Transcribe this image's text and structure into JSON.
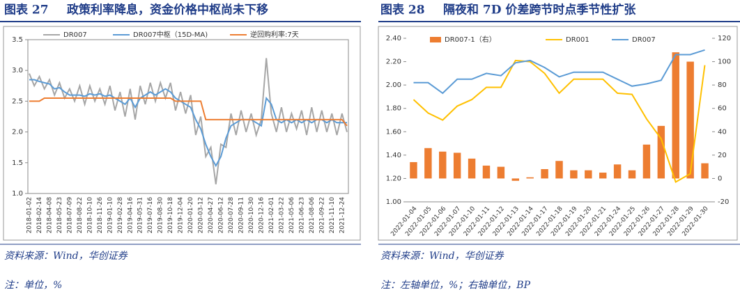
{
  "chart_data": [
    {
      "type": "line",
      "label": "图表 27",
      "title": "政策利率降息，资金价格中枢尚未下移",
      "source": "资料来源：Wind，华创证券",
      "note": "注：单位，%",
      "categories": [
        "2018-01-02",
        null,
        "2018-02-14",
        null,
        "2018-04-08",
        null,
        "2018-05-23",
        null,
        "2018-07-09",
        null,
        "2018-08-22",
        null,
        "2018-10-10",
        null,
        "2018-11-26",
        null,
        "2019-01-10",
        null,
        "2019-02-28",
        null,
        "2019-04-16",
        null,
        "2019-05-31",
        null,
        "2019-07-16",
        null,
        "2019-08-30",
        null,
        "2019-10-18",
        null,
        "2019-12-04",
        null,
        "2020-01-20",
        null,
        "2020-03-12",
        null,
        "2020-04-27",
        null,
        "2020-06-12",
        null,
        "2020-07-28",
        null,
        "2020-09-11",
        null,
        "2020-10-30",
        null,
        "2020-12-16",
        null,
        "2021-02-01",
        null,
        "2021-03-22",
        null,
        "2021-05-06",
        null,
        "2021-06-23",
        null,
        "2021-08-06",
        null,
        "2021-09-22",
        null,
        "2021-11-10",
        null,
        "2021-12-24",
        null
      ],
      "ylim": [
        1,
        3.5
      ],
      "yticks": [
        {
          "value": 1,
          "label": "1.0"
        },
        1.5,
        {
          "value": 2,
          "label": "2.0"
        },
        2.5,
        {
          "value": 3,
          "label": "3.0"
        },
        3.5
      ],
      "series": [
        {
          "name": "DR007",
          "color": "#a6a6a6",
          "values": [
            2.95,
            2.75,
            2.9,
            2.7,
            2.85,
            2.6,
            2.8,
            2.55,
            2.7,
            2.5,
            2.75,
            2.45,
            2.75,
            2.5,
            2.7,
            2.45,
            2.75,
            2.35,
            2.65,
            2.25,
            2.7,
            2.2,
            2.75,
            2.45,
            2.8,
            2.5,
            2.8,
            2.55,
            2.8,
            2.35,
            2.65,
            2.3,
            2.6,
            1.95,
            2.25,
            1.6,
            1.75,
            1.15,
            1.8,
            1.75,
            2.3,
            1.95,
            2.35,
            2.0,
            2.3,
            1.95,
            2.2,
            3.2,
            2.3,
            2.0,
            2.4,
            2.0,
            2.3,
            2.05,
            2.35,
            1.95,
            2.4,
            2.0,
            2.35,
            2.0,
            2.3,
            1.95,
            2.3,
            2.0
          ]
        },
        {
          "name": "DR007中枢（15D-MA)",
          "color": "#5b9bd5",
          "values": [
            2.85,
            2.85,
            2.82,
            2.8,
            2.78,
            2.7,
            2.72,
            2.65,
            2.6,
            2.6,
            2.6,
            2.58,
            2.62,
            2.6,
            2.62,
            2.58,
            2.6,
            2.55,
            2.5,
            2.45,
            2.55,
            2.4,
            2.55,
            2.6,
            2.65,
            2.6,
            2.65,
            2.7,
            2.65,
            2.55,
            2.5,
            2.45,
            2.4,
            2.2,
            2.05,
            1.8,
            1.6,
            1.45,
            1.6,
            1.9,
            2.1,
            2.15,
            2.2,
            2.2,
            2.2,
            2.15,
            2.1,
            2.55,
            2.45,
            2.2,
            2.15,
            2.2,
            2.15,
            2.2,
            2.15,
            2.2,
            2.15,
            2.2,
            2.2,
            2.15,
            2.2,
            2.15,
            2.15,
            2.15
          ]
        },
        {
          "name": "逆回购利率:7天",
          "color": "#ed7d31",
          "values": [
            2.5,
            2.5,
            2.5,
            2.55,
            2.55,
            2.55,
            2.55,
            2.55,
            2.55,
            2.55,
            2.55,
            2.55,
            2.55,
            2.55,
            2.55,
            2.55,
            2.55,
            2.55,
            2.55,
            2.55,
            2.55,
            2.55,
            2.55,
            2.55,
            2.55,
            2.55,
            2.55,
            2.55,
            2.55,
            2.5,
            2.5,
            2.5,
            2.5,
            2.5,
            2.5,
            2.2,
            2.2,
            2.2,
            2.2,
            2.2,
            2.2,
            2.2,
            2.2,
            2.2,
            2.2,
            2.2,
            2.2,
            2.2,
            2.2,
            2.2,
            2.2,
            2.2,
            2.2,
            2.2,
            2.2,
            2.2,
            2.2,
            2.2,
            2.2,
            2.2,
            2.2,
            2.2,
            2.2,
            2.1
          ]
        }
      ]
    },
    {
      "type": "combo",
      "label": "图表 28",
      "title": "隔夜和 7D 价差跨节时点季节性扩张",
      "source": "资料来源：Wind，华创证券",
      "note": "注：左轴单位，%；右轴单位，BP",
      "categories": [
        "2022-01-04",
        "2022-01-05",
        "2022-01-06",
        "2022-01-07",
        "2022-01-10",
        "2022-01-11",
        "2022-01-12",
        "2022-01-13",
        "2022-01-14",
        "2022-01-17",
        "2022-01-18",
        "2022-01-19",
        "2022-01-20",
        "2022-01-21",
        "2022-01-24",
        "2022-01-25",
        "2022-01-26",
        "2022-01-27",
        "2022-01-28",
        "2022-01-29",
        "2022-01-30"
      ],
      "ylim": [
        1,
        2.4
      ],
      "yticks": [
        {
          "value": 1,
          "label": "1.00"
        },
        {
          "value": 1.2,
          "label": "1.20"
        },
        {
          "value": 1.4,
          "label": "1.40"
        },
        {
          "value": 1.6,
          "label": "1.60"
        },
        {
          "value": 1.8,
          "label": "1.80"
        },
        {
          "value": 2,
          "label": "2.00"
        },
        {
          "value": 2.2,
          "label": "2.20"
        },
        {
          "value": 2.4,
          "label": "2.40"
        }
      ],
      "y2lim": [
        -20,
        120
      ],
      "y2ticks": [
        -20,
        0,
        20,
        40,
        60,
        80,
        100,
        120
      ],
      "series": [
        {
          "name": "DR007-1（右）",
          "type": "bar",
          "axis": "y2",
          "color": "#ed7d31",
          "values": [
            14,
            26,
            23,
            22,
            17,
            11,
            10,
            -2,
            1,
            8,
            15,
            7,
            7,
            5,
            12,
            7,
            29,
            45,
            108,
            100,
            13
          ]
        },
        {
          "name": "DR001",
          "type": "line",
          "color": "#ffc000",
          "values": [
            1.875,
            1.76,
            1.7,
            1.82,
            1.875,
            1.98,
            1.98,
            2.21,
            2.2,
            2.1,
            1.93,
            2.05,
            2.05,
            2.05,
            1.93,
            1.92,
            1.71,
            1.54,
            1.17,
            1.24,
            2.17
          ]
        },
        {
          "name": "DR007",
          "type": "line",
          "color": "#5b9bd5",
          "values": [
            2.02,
            2.02,
            1.93,
            2.05,
            2.05,
            2.1,
            2.08,
            2.19,
            2.21,
            2.15,
            2.07,
            2.11,
            2.11,
            2.11,
            2.05,
            1.99,
            2.01,
            2.04,
            2.26,
            2.26,
            2.3
          ]
        }
      ]
    }
  ]
}
